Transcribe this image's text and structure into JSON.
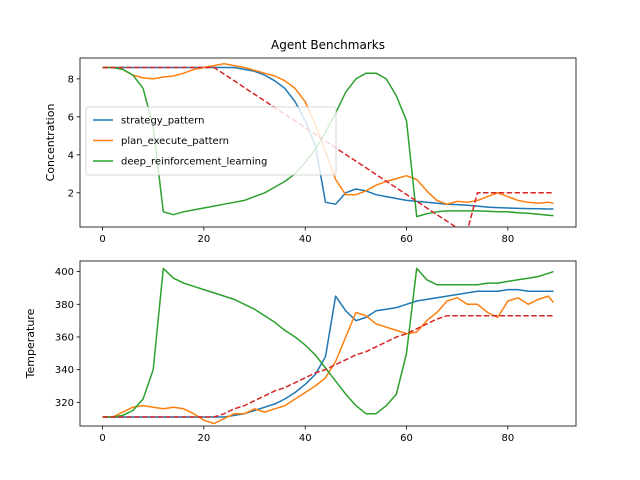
{
  "chart_data": {
    "type": "line",
    "title": "Agent Benchmarks",
    "x": [
      0,
      2,
      4,
      6,
      8,
      10,
      12,
      14,
      16,
      18,
      20,
      22,
      24,
      26,
      28,
      30,
      32,
      34,
      36,
      38,
      40,
      42,
      44,
      46,
      48,
      50,
      52,
      54,
      56,
      58,
      60,
      62,
      64,
      66,
      68,
      70,
      72,
      74,
      76,
      78,
      80,
      82,
      84,
      86,
      88,
      89
    ],
    "subplots": [
      {
        "name": "top",
        "ylabel": "Concentration",
        "xlim": [
          -4.45,
          93.45
        ],
        "ylim": [
          0.2,
          9.1
        ],
        "xticks": [
          0,
          20,
          40,
          60,
          80
        ],
        "yticks": [
          2,
          4,
          6,
          8
        ],
        "legend": "center-left",
        "series": [
          {
            "name": "strategy_pattern",
            "color": "#1f77b4",
            "style": "solid",
            "values": [
              8.6,
              8.6,
              8.6,
              8.6,
              8.6,
              8.6,
              8.6,
              8.6,
              8.6,
              8.6,
              8.6,
              8.6,
              8.6,
              8.6,
              8.5,
              8.4,
              8.2,
              7.9,
              7.5,
              6.8,
              5.8,
              4.5,
              1.5,
              1.4,
              2.0,
              2.2,
              2.1,
              1.9,
              1.8,
              1.7,
              1.6,
              1.55,
              1.5,
              1.45,
              1.4,
              1.38,
              1.35,
              1.3,
              1.25,
              1.22,
              1.2,
              1.18,
              1.17,
              1.16,
              1.15,
              1.15
            ]
          },
          {
            "name": "plan_execute_pattern",
            "color": "#ff7f0e",
            "style": "solid",
            "values": [
              8.6,
              8.6,
              8.5,
              8.2,
              8.05,
              8.0,
              8.1,
              8.15,
              8.3,
              8.5,
              8.6,
              8.7,
              8.8,
              8.7,
              8.6,
              8.45,
              8.3,
              8.15,
              7.9,
              7.5,
              6.8,
              5.6,
              4.2,
              2.7,
              1.9,
              1.9,
              2.1,
              2.4,
              2.6,
              2.75,
              2.9,
              2.7,
              2.1,
              1.6,
              1.4,
              1.55,
              1.5,
              1.6,
              1.8,
              2.0,
              1.8,
              1.6,
              1.5,
              1.45,
              1.5,
              1.45
            ]
          },
          {
            "name": "deep_reinforcement_learning",
            "color": "#2ca02c",
            "style": "solid",
            "values": [
              8.6,
              8.6,
              8.5,
              8.2,
              7.5,
              5.5,
              1.0,
              0.85,
              1.0,
              1.1,
              1.2,
              1.3,
              1.4,
              1.5,
              1.6,
              1.8,
              2.0,
              2.3,
              2.6,
              3.0,
              3.6,
              4.3,
              5.2,
              6.2,
              7.3,
              8.0,
              8.3,
              8.3,
              8.0,
              7.1,
              5.8,
              0.75,
              0.9,
              1.0,
              1.05,
              1.05,
              1.05,
              1.05,
              1.03,
              1.0,
              1.0,
              0.95,
              0.92,
              0.87,
              0.82,
              0.8
            ]
          },
          {
            "name": "",
            "color": "#d62728",
            "style": "dashed",
            "values": [
              8.6,
              8.6,
              8.6,
              8.6,
              8.6,
              8.6,
              8.6,
              8.6,
              8.6,
              8.6,
              8.6,
              8.6,
              8.25,
              7.9,
              7.54,
              7.19,
              6.84,
              6.49,
              6.13,
              5.78,
              5.43,
              5.08,
              4.73,
              4.37,
              4.02,
              3.67,
              3.32,
              2.96,
              2.61,
              2.26,
              1.91,
              1.56,
              1.2,
              0.85,
              0.5,
              0.15,
              0.0,
              2.0,
              2.0,
              2.0,
              2.0,
              2.0,
              2.0,
              2.0,
              2.0,
              2.0
            ]
          }
        ]
      },
      {
        "name": "bottom",
        "ylabel": "Temperature",
        "xlim": [
          -4.45,
          93.45
        ],
        "ylim": [
          305.5,
          406.5
        ],
        "xticks": [
          0,
          20,
          40,
          60,
          80
        ],
        "yticks": [
          320,
          340,
          360,
          380,
          400
        ],
        "series": [
          {
            "name": "strategy_pattern",
            "color": "#1f77b4",
            "style": "solid",
            "values": [
              311,
              311,
              311,
              311,
              311,
              311,
              311,
              311,
              311,
              311,
              311,
              311,
              311,
              312,
              313,
              315,
              317,
              319,
              322,
              326,
              331,
              337,
              348,
              385,
              376,
              370,
              372,
              376,
              377,
              378,
              380,
              382,
              383,
              384,
              385,
              386,
              387,
              388,
              388,
              388,
              389,
              389,
              388,
              388,
              388,
              388
            ]
          },
          {
            "name": "plan_execute_pattern",
            "color": "#ff7f0e",
            "style": "solid",
            "values": [
              311,
              311,
              314,
              317,
              318,
              317,
              316,
              317,
              316,
              313,
              309,
              307,
              310,
              313,
              313,
              316,
              314,
              316,
              318,
              322,
              326,
              330,
              335,
              345,
              360,
              375,
              373,
              368,
              366,
              364,
              362,
              363,
              370,
              375,
              382,
              384,
              380,
              380,
              375,
              372,
              382,
              384,
              380,
              383,
              385,
              381
            ]
          },
          {
            "name": "deep_reinforcement_learning",
            "color": "#2ca02c",
            "style": "solid",
            "values": [
              311,
              311,
              312,
              315,
              322,
              340,
              402,
              396,
              393,
              391,
              389,
              387,
              385,
              383,
              380,
              377,
              373,
              369,
              364,
              360,
              355,
              349,
              341,
              333,
              325,
              318,
              313,
              313,
              318,
              325,
              350,
              402,
              395,
              392,
              392,
              392,
              392,
              392,
              393,
              393,
              394,
              395,
              396,
              397,
              399,
              400
            ]
          },
          {
            "name": "",
            "color": "#d62728",
            "style": "dashed",
            "values": [
              311,
              311,
              311,
              311,
              311,
              311,
              311,
              311,
              311,
              311,
              311,
              311,
              313,
              316,
              318,
              321,
              324,
              327,
              329,
              332,
              335,
              338,
              340,
              343,
              346,
              349,
              351,
              354,
              357,
              360,
              362,
              365,
              368,
              371,
              373,
              373,
              373,
              373,
              373,
              373,
              373,
              373,
              373,
              373,
              373,
              373
            ]
          }
        ]
      }
    ]
  }
}
